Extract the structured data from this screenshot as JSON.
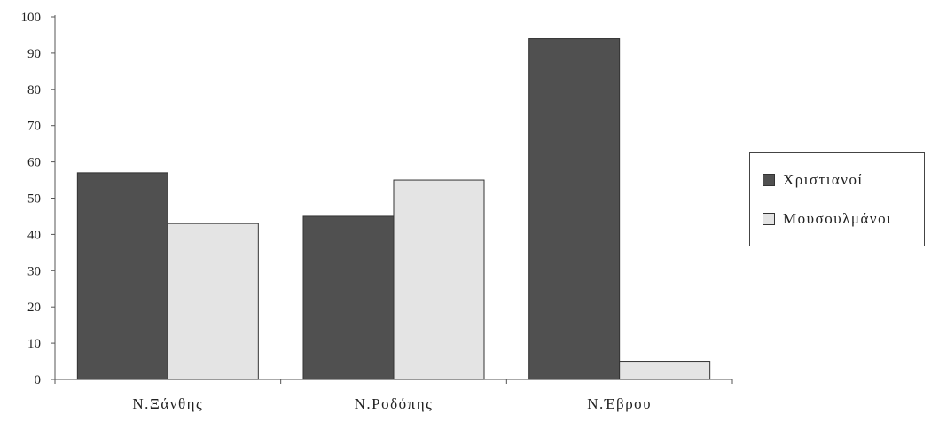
{
  "chart_data": {
    "type": "bar",
    "categories": [
      "Ν.Ξάνθης",
      "Ν.Ροδόπης",
      "Ν.Έβρου"
    ],
    "series": [
      {
        "name": "Χριστιανοί",
        "values": [
          57,
          45,
          94
        ],
        "color": "#505050"
      },
      {
        "name": "Μουσουλμάνοι",
        "values": [
          43,
          55,
          5
        ],
        "color": "#e4e4e4"
      }
    ],
    "ylim": [
      0,
      100
    ],
    "yticks": [
      0,
      10,
      20,
      30,
      40,
      50,
      60,
      70,
      80,
      90,
      100
    ],
    "grid": false,
    "legend_position": "right"
  }
}
